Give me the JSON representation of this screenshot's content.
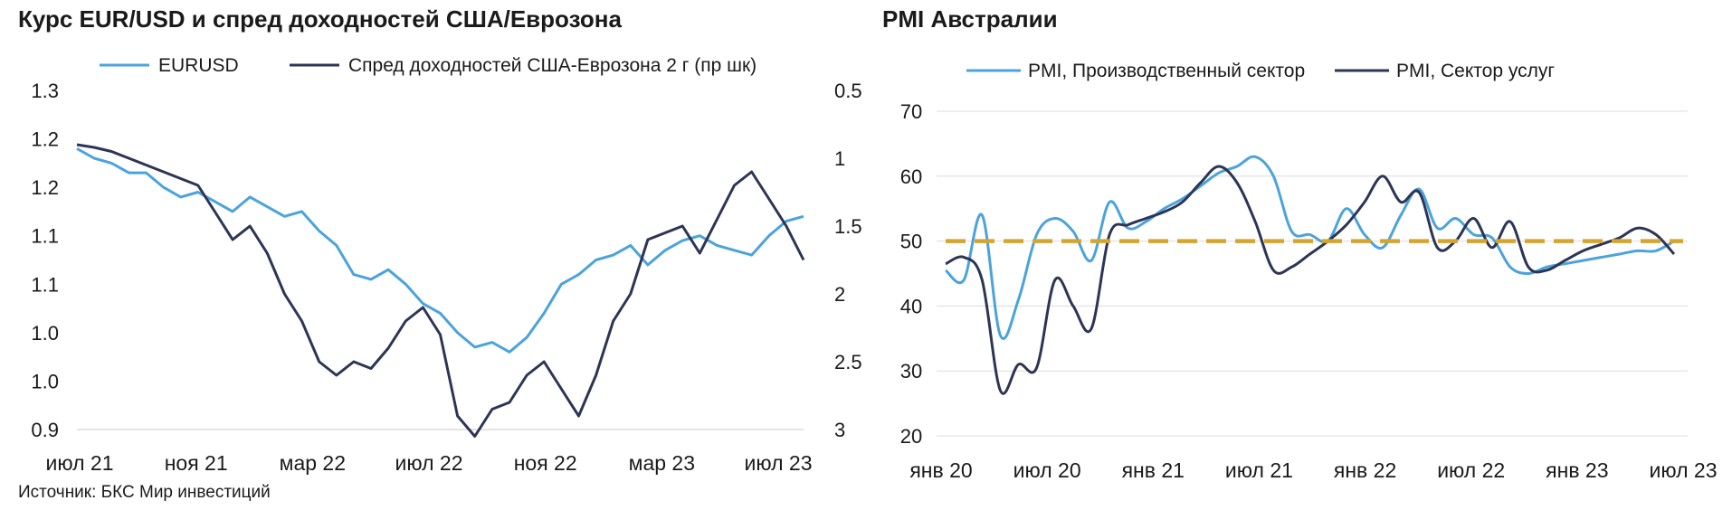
{
  "chart_data": [
    {
      "type": "line",
      "title": "Курс EUR/USD и спред доходностей США/Еврозона",
      "yticks_left": [
        "1.3",
        "1.2",
        "1.2",
        "1.1",
        "1.1",
        "1.0",
        "1.0",
        "0.9"
      ],
      "ylim_left": [
        0.9,
        1.25
      ],
      "yticks_right": [
        "0.5",
        "1",
        "1.5",
        "2",
        "2.5",
        "3"
      ],
      "ylim_right": [
        0.5,
        3
      ],
      "right_axis_inverted": true,
      "x_ticks": [
        "июл 21",
        "ноя 21",
        "мар 22",
        "июл 22",
        "ноя 22",
        "мар 23",
        "июл 23"
      ],
      "series": [
        {
          "name": "EURUSD",
          "axis": "left",
          "color": "#4ba3dc",
          "points": [
            [
              0,
              1.19
            ],
            [
              1,
              1.18
            ],
            [
              2,
              1.175
            ],
            [
              3,
              1.165
            ],
            [
              4,
              1.165
            ],
            [
              5,
              1.15
            ],
            [
              6,
              1.14
            ],
            [
              7,
              1.145
            ],
            [
              8,
              1.135
            ],
            [
              9,
              1.125
            ],
            [
              10,
              1.14
            ],
            [
              11,
              1.13
            ],
            [
              12,
              1.12
            ],
            [
              13,
              1.125
            ],
            [
              14,
              1.105
            ],
            [
              15,
              1.09
            ],
            [
              16,
              1.06
            ],
            [
              17,
              1.055
            ],
            [
              18,
              1.065
            ],
            [
              19,
              1.05
            ],
            [
              20,
              1.03
            ],
            [
              21,
              1.02
            ],
            [
              22,
              1.0
            ],
            [
              23,
              0.985
            ],
            [
              24,
              0.99
            ],
            [
              25,
              0.98
            ],
            [
              26,
              0.995
            ],
            [
              27,
              1.02
            ],
            [
              28,
              1.05
            ],
            [
              29,
              1.06
            ],
            [
              30,
              1.075
            ],
            [
              31,
              1.08
            ],
            [
              32,
              1.09
            ],
            [
              33,
              1.07
            ],
            [
              34,
              1.085
            ],
            [
              35,
              1.095
            ],
            [
              36,
              1.1
            ],
            [
              37,
              1.09
            ],
            [
              38,
              1.085
            ],
            [
              39,
              1.08
            ],
            [
              40,
              1.1
            ],
            [
              41,
              1.115
            ],
            [
              42,
              1.12
            ]
          ]
        },
        {
          "name": "Спред доходностей США-Еврозона 2 г (пр шк)",
          "axis": "right",
          "color": "#2d3555",
          "points": [
            [
              0,
              0.9
            ],
            [
              1,
              0.92
            ],
            [
              2,
              0.95
            ],
            [
              3,
              1.0
            ],
            [
              4,
              1.05
            ],
            [
              5,
              1.1
            ],
            [
              6,
              1.15
            ],
            [
              7,
              1.2
            ],
            [
              8,
              1.4
            ],
            [
              9,
              1.6
            ],
            [
              10,
              1.5
            ],
            [
              11,
              1.7
            ],
            [
              12,
              2.0
            ],
            [
              13,
              2.2
            ],
            [
              14,
              2.5
            ],
            [
              15,
              2.6
            ],
            [
              16,
              2.5
            ],
            [
              17,
              2.55
            ],
            [
              18,
              2.4
            ],
            [
              19,
              2.2
            ],
            [
              20,
              2.1
            ],
            [
              21,
              2.3
            ],
            [
              22,
              2.9
            ],
            [
              23,
              3.05
            ],
            [
              24,
              2.85
            ],
            [
              25,
              2.8
            ],
            [
              26,
              2.6
            ],
            [
              27,
              2.5
            ],
            [
              28,
              2.7
            ],
            [
              29,
              2.9
            ],
            [
              30,
              2.6
            ],
            [
              31,
              2.2
            ],
            [
              32,
              2.0
            ],
            [
              33,
              1.6
            ],
            [
              34,
              1.55
            ],
            [
              35,
              1.5
            ],
            [
              36,
              1.7
            ],
            [
              37,
              1.45
            ],
            [
              38,
              1.2
            ],
            [
              39,
              1.1
            ],
            [
              40,
              1.3
            ],
            [
              41,
              1.5
            ],
            [
              42,
              1.75
            ]
          ]
        }
      ]
    },
    {
      "type": "line",
      "title": "PMI Австралии",
      "yticks": [
        "70",
        "60",
        "50",
        "40",
        "30",
        "20"
      ],
      "ylim": [
        20,
        70
      ],
      "x_ticks": [
        "янв 20",
        "июл 20",
        "янв 21",
        "июл 21",
        "янв 22",
        "июл 22",
        "янв 23",
        "июл 23"
      ],
      "threshold": 50,
      "threshold_color": "#d4a531",
      "series": [
        {
          "name": "PMI, Производственный сектор",
          "color": "#4ba3dc",
          "values": [
            45.5,
            44,
            54,
            35.5,
            41,
            51,
            53.5,
            51.5,
            47,
            56,
            52,
            53,
            55,
            56.5,
            58.5,
            60.5,
            61.5,
            63,
            60,
            51.5,
            51,
            50,
            55,
            51,
            49,
            54,
            58,
            52,
            53.5,
            51,
            50.5,
            46,
            45,
            46,
            46.5,
            47,
            47.5,
            48,
            48.5,
            48.5,
            50
          ]
        },
        {
          "name": "PMI, Сектор услуг",
          "color": "#2d3555",
          "values": [
            46.5,
            47.5,
            44,
            27,
            31,
            30.5,
            44,
            40,
            36.5,
            51,
            52.5,
            53.5,
            54.5,
            56,
            59,
            61.5,
            59,
            53,
            45.5,
            46,
            48,
            50,
            52.5,
            56,
            60,
            56,
            57.5,
            49,
            50,
            53.5,
            49,
            53,
            46,
            45.5,
            47,
            48.5,
            49.5,
            50.5,
            52,
            51,
            48
          ]
        }
      ]
    }
  ],
  "source": "Источник: БКС Мир инвестиций"
}
